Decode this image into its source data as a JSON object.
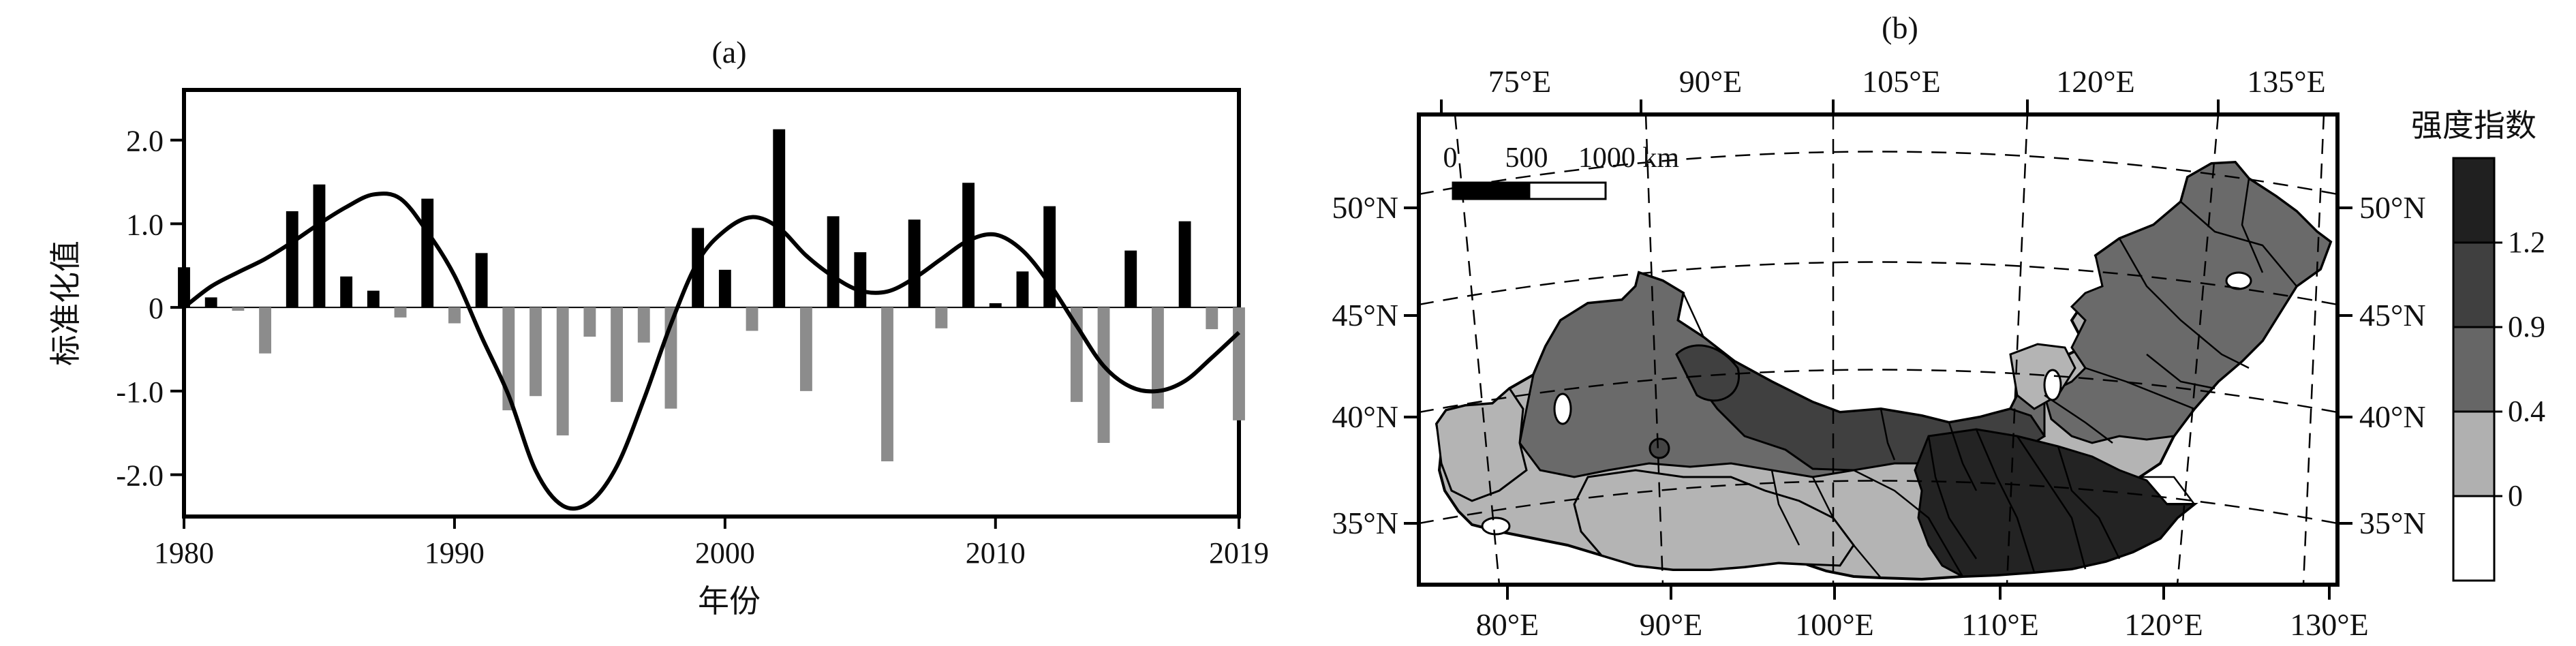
{
  "chart_data": [
    {
      "type": "bar",
      "title": "(a)",
      "xlabel": "年份",
      "ylabel": "标准化值",
      "xlim": [
        1980,
        2019
      ],
      "ylim": [
        -2.5,
        2.6
      ],
      "xticks": [
        "1980",
        "1990",
        "2000",
        "2010",
        "2019"
      ],
      "yticks": [
        "2.0",
        "1.0",
        "0",
        "-1.0",
        "-2.0"
      ],
      "years": [
        1980,
        1981,
        1982,
        1983,
        1984,
        1985,
        1986,
        1987,
        1988,
        1989,
        1990,
        1991,
        1992,
        1993,
        1994,
        1995,
        1996,
        1997,
        1998,
        1999,
        2000,
        2001,
        2002,
        2003,
        2004,
        2005,
        2006,
        2007,
        2008,
        2009,
        2010,
        2011,
        2012,
        2013,
        2014,
        2015,
        2016,
        2017,
        2018,
        2019
      ],
      "values": [
        0.48,
        0.12,
        -0.04,
        -0.55,
        1.15,
        1.47,
        0.37,
        0.2,
        -0.12,
        1.3,
        -0.19,
        0.65,
        -1.23,
        -1.06,
        -1.53,
        -0.35,
        -1.13,
        -0.42,
        -1.21,
        0.95,
        0.45,
        -0.28,
        2.13,
        -1.0,
        1.09,
        0.66,
        -1.84,
        1.05,
        -0.25,
        1.49,
        0.05,
        0.43,
        1.21,
        -1.13,
        -1.62,
        0.68,
        -1.21,
        1.03,
        -0.26,
        -1.35
      ],
      "positive_color": "#000000",
      "negative_color": "#8c8c8c",
      "smooth_line": {
        "x": [
          1980,
          1981,
          1982,
          1983,
          1984,
          1985,
          1986,
          1987,
          1988,
          1989,
          1990,
          1991,
          1992,
          1993,
          1994,
          1995,
          1996,
          1997,
          1998,
          1999,
          2000,
          2001,
          2002,
          2003,
          2004,
          2005,
          2006,
          2007,
          2008,
          2009,
          2010,
          2011,
          2012,
          2013,
          2014,
          2015,
          2016,
          2017,
          2018,
          2019
        ],
        "y": [
          0.0,
          0.25,
          0.42,
          0.58,
          0.78,
          1.0,
          1.2,
          1.35,
          1.3,
          0.9,
          0.38,
          -0.35,
          -1.05,
          -1.95,
          -2.37,
          -2.33,
          -1.9,
          -1.1,
          -0.2,
          0.55,
          0.92,
          1.08,
          0.95,
          0.62,
          0.37,
          0.2,
          0.19,
          0.35,
          0.58,
          0.8,
          0.87,
          0.68,
          0.28,
          -0.22,
          -0.7,
          -0.95,
          -1.0,
          -0.88,
          -0.6,
          -0.3
        ]
      }
    },
    {
      "type": "heatmap",
      "title": "(b)",
      "top_lon_labels": [
        "75°E",
        "90°E",
        "105°E",
        "120°E",
        "135°E"
      ],
      "bottom_lon_labels": [
        "80°E",
        "90°E",
        "100°E",
        "110°E",
        "120°E",
        "130°E"
      ],
      "left_lat_labels": [
        "50°N",
        "45°N",
        "40°N",
        "35°N"
      ],
      "right_lat_labels": [
        "50°N",
        "45°N",
        "40°N",
        "35°N"
      ],
      "scalebar": {
        "labels": [
          "0",
          "500",
          "1000 km"
        ]
      },
      "colorbar": {
        "title": "强度指数",
        "tick_labels": [
          "1.2",
          "0.9",
          "0.4",
          "0"
        ],
        "colors": [
          "#202020",
          "#404040",
          "#666666",
          "#b0b0b0",
          "#ffffff"
        ]
      }
    }
  ]
}
